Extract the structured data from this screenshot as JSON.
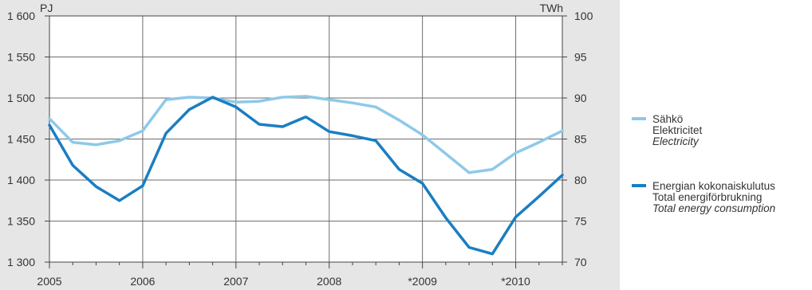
{
  "chart_data": {
    "type": "line",
    "left_axis": {
      "unit": "PJ",
      "ylim": [
        1300,
        1600
      ],
      "ticks": [
        1300,
        1350,
        1400,
        1450,
        1500,
        1550,
        1600
      ],
      "tick_labels": [
        "1 300",
        "1 350",
        "1 400",
        "1 450",
        "1 500",
        "1 550",
        "1 600"
      ]
    },
    "right_axis": {
      "unit": "TWh",
      "ylim": [
        70,
        100
      ],
      "ticks": [
        70,
        75,
        80,
        85,
        90,
        95,
        100
      ],
      "tick_labels": [
        "70",
        "75",
        "80",
        "85",
        "90",
        "95",
        "100"
      ]
    },
    "x_axis": {
      "range": [
        2005,
        2010.5
      ],
      "ticks": [
        2005,
        2006,
        2007,
        2008,
        2009,
        2010
      ],
      "tick_labels": [
        "2005",
        "2006",
        "2007",
        "2008",
        "*2009",
        "*2010"
      ],
      "minor_step": 0.25
    },
    "grid": true,
    "legend_placement": "right",
    "series": [
      {
        "name": "Sähkö",
        "name_sv": "Elektricitet",
        "name_en": "Electricity",
        "axis": "right",
        "color": "#8ec9e8",
        "x": [
          2005,
          2005.25,
          2005.5,
          2005.75,
          2006,
          2006.25,
          2006.5,
          2006.75,
          2007,
          2007.25,
          2007.5,
          2007.75,
          2008,
          2008.25,
          2008.5,
          2008.75,
          2009,
          2009.25,
          2009.5,
          2009.75,
          2010,
          2010.25,
          2010.5
        ],
        "values": [
          87.5,
          84.6,
          84.3,
          84.8,
          86.0,
          89.8,
          90.1,
          90.0,
          89.5,
          89.6,
          90.1,
          90.2,
          89.8,
          89.4,
          88.9,
          87.3,
          85.5,
          83.2,
          80.9,
          81.3,
          83.3,
          84.6,
          86.0
        ]
      },
      {
        "name": "Energian kokonaiskulutus",
        "name_sv": "Total energiförbrukning",
        "name_en": "Total energy consumption",
        "axis": "left",
        "color": "#1a7ec2",
        "x": [
          2005,
          2005.25,
          2005.5,
          2005.75,
          2006,
          2006.25,
          2006.5,
          2006.75,
          2007,
          2007.25,
          2007.5,
          2007.75,
          2008,
          2008.25,
          2008.5,
          2008.75,
          2009,
          2009.25,
          2009.5,
          2009.75,
          2010,
          2010.25,
          2010.5
        ],
        "values": [
          1467,
          1418,
          1392,
          1375,
          1393,
          1457,
          1486,
          1501,
          1489,
          1468,
          1465,
          1477,
          1459,
          1454,
          1448,
          1413,
          1396,
          1354,
          1318,
          1310,
          1355,
          1380,
          1406
        ]
      }
    ]
  }
}
